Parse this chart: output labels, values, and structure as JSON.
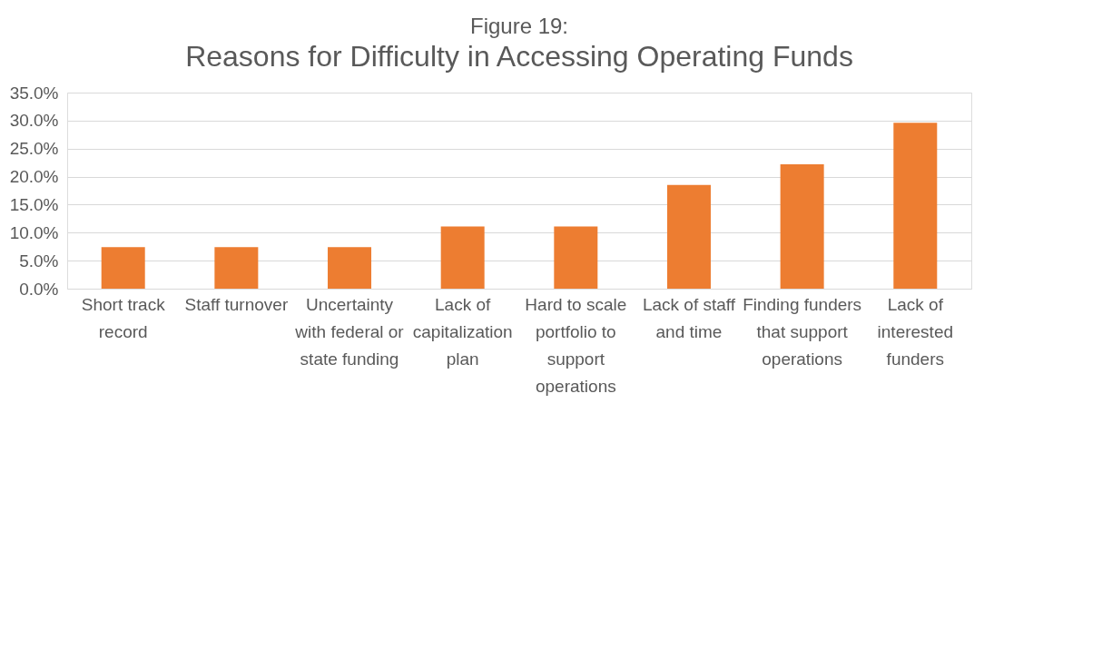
{
  "chart_data": {
    "type": "bar",
    "title": "Figure 19:",
    "subtitle": "Reasons for Difficulty in Accessing Operating Funds",
    "categories": [
      "Short track record",
      "Staff turnover",
      "Uncertainty with federal or state funding",
      "Lack of capitalization plan",
      "Hard to scale portfolio to support operations",
      "Lack of staff and time",
      "Finding funders that support operations",
      "Lack of interested funders"
    ],
    "values": [
      7.4,
      7.4,
      7.4,
      11.1,
      11.1,
      18.5,
      22.2,
      29.6
    ],
    "color": "#ed7d31",
    "ylim": [
      0,
      35
    ],
    "yticks": [
      {
        "value": 0,
        "label": "0.0%"
      },
      {
        "value": 5,
        "label": "5.0%"
      },
      {
        "value": 10,
        "label": "10.0%"
      },
      {
        "value": 15,
        "label": "15.0%"
      },
      {
        "value": 20,
        "label": "20.0%"
      },
      {
        "value": 25,
        "label": "25.0%"
      },
      {
        "value": 30,
        "label": "30.0%"
      },
      {
        "value": 35,
        "label": "35.0%"
      }
    ],
    "grid": "y"
  }
}
